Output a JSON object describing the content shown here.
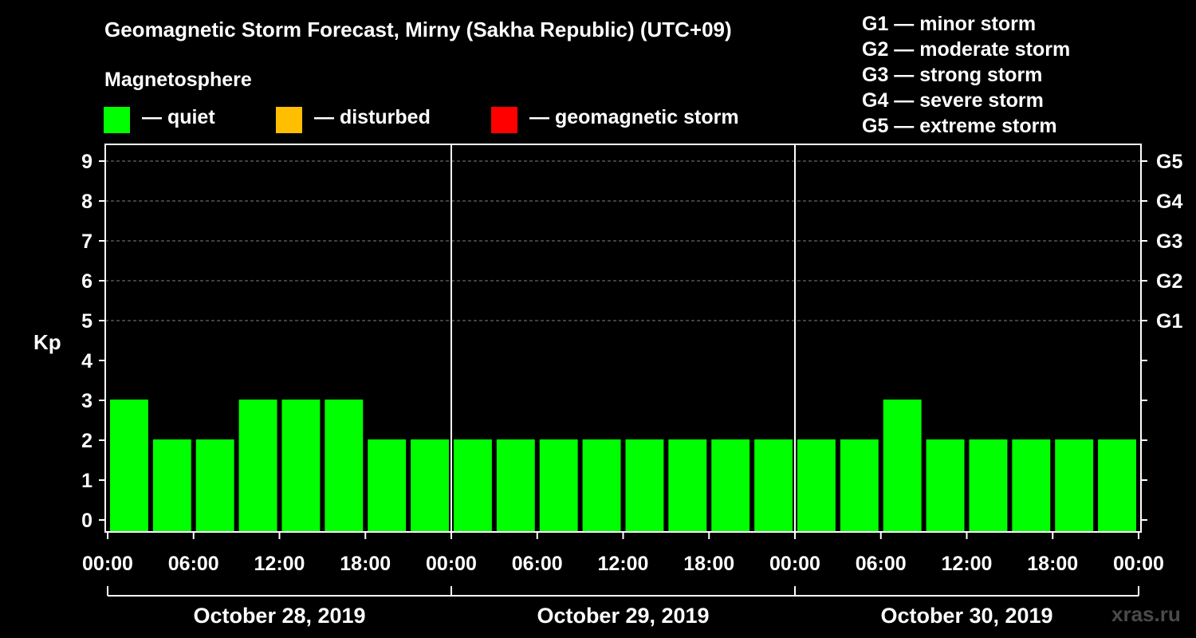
{
  "chart_data": {
    "type": "bar",
    "title": "Geomagnetic Storm Forecast, Mirny (Sakha Republic) (UTC+09)",
    "ylabel": "Kp",
    "ylim": [
      0,
      9
    ],
    "yticks": [
      "0",
      "1",
      "2",
      "3",
      "4",
      "5",
      "6",
      "7",
      "8",
      "9"
    ],
    "right_ticks": [
      {
        "kp": 5,
        "label": "G1"
      },
      {
        "kp": 6,
        "label": "G2"
      },
      {
        "kp": 7,
        "label": "G3"
      },
      {
        "kp": 8,
        "label": "G4"
      },
      {
        "kp": 9,
        "label": "G5"
      }
    ],
    "x_tick_labels": [
      "00:00",
      "06:00",
      "12:00",
      "18:00",
      "00:00",
      "06:00",
      "12:00",
      "18:00",
      "00:00",
      "06:00",
      "12:00",
      "18:00",
      "00:00"
    ],
    "days": [
      "October 28, 2019",
      "October 29, 2019",
      "October 30, 2019"
    ],
    "interval_hours": 3,
    "values": [
      3,
      2,
      2,
      3,
      3,
      3,
      2,
      2,
      2,
      2,
      2,
      2,
      2,
      2,
      2,
      2,
      2,
      2,
      3,
      2,
      2,
      2,
      2,
      2
    ],
    "grid": "dashed at Kp 5-9",
    "colors": {
      "quiet": "#00ff00",
      "disturbed": "#ffbf00",
      "storm": "#ff0000",
      "axis": "#ffffff",
      "grid": "#808080",
      "background": "#000000"
    }
  },
  "legend": {
    "title": "Magnetosphere",
    "items": [
      {
        "label": "— quiet",
        "color": "#00ff00"
      },
      {
        "label": "— disturbed",
        "color": "#ffbf00"
      },
      {
        "label": "— geomagnetic storm",
        "color": "#ff0000"
      }
    ]
  },
  "g_legend": [
    "G1 — minor storm",
    "G2 — moderate storm",
    "G3 — strong storm",
    "G4 — severe storm",
    "G5 — extreme storm"
  ],
  "watermark": "xras.ru"
}
